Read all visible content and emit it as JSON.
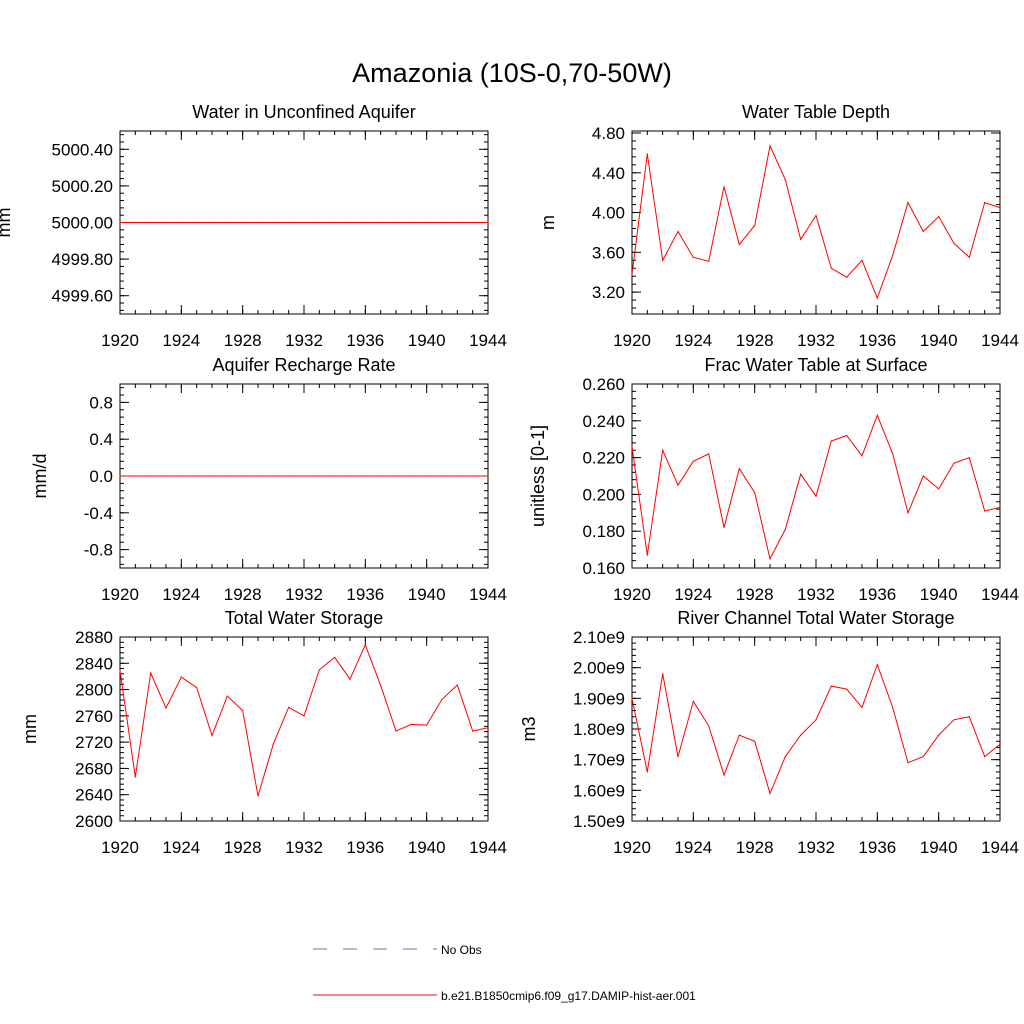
{
  "title": "Amazonia (10S-0,70-50W)",
  "chart_data": [
    {
      "type": "line",
      "title": "Water in Unconfined Aquifer",
      "ylabel": "mm",
      "xlim": [
        1920,
        1944
      ],
      "ylim": [
        4999.5,
        5000.5
      ],
      "xticks": [
        1920,
        1924,
        1928,
        1932,
        1936,
        1940,
        1944
      ],
      "xtick_labels": [
        "1920",
        "1924",
        "1928",
        "1932",
        "1936",
        "1940",
        "1944"
      ],
      "yticks": [
        4999.6,
        4999.8,
        5000.0,
        5000.2,
        5000.4
      ],
      "ytick_labels": [
        "4999.60",
        "4999.80",
        "5000.00",
        "5000.20",
        "5000.40"
      ],
      "series": [
        {
          "name": "b.e21.B1850cmip6.f09_g17.DAMIP-hist-aer.001",
          "color": "#ff0000",
          "x": [
            1920,
            1921,
            1922,
            1923,
            1924,
            1925,
            1926,
            1927,
            1928,
            1929,
            1930,
            1931,
            1932,
            1933,
            1934,
            1935,
            1936,
            1937,
            1938,
            1939,
            1940,
            1941,
            1942,
            1943,
            1944
          ],
          "y": [
            5000,
            5000,
            5000,
            5000,
            5000,
            5000,
            5000,
            5000,
            5000,
            5000,
            5000,
            5000,
            5000,
            5000,
            5000,
            5000,
            5000,
            5000,
            5000,
            5000,
            5000,
            5000,
            5000,
            5000,
            5000
          ]
        }
      ]
    },
    {
      "type": "line",
      "title": "Water Table Depth",
      "ylabel": "m",
      "xlim": [
        1920,
        1944
      ],
      "ylim": [
        2.98,
        4.82
      ],
      "xticks": [
        1920,
        1924,
        1928,
        1932,
        1936,
        1940,
        1944
      ],
      "xtick_labels": [
        "1920",
        "1924",
        "1928",
        "1932",
        "1936",
        "1940",
        "1944"
      ],
      "yticks": [
        3.2,
        3.6,
        4.0,
        4.4,
        4.8
      ],
      "ytick_labels": [
        "3.20",
        "3.60",
        "4.00",
        "4.40",
        "4.80"
      ],
      "series": [
        {
          "name": "b.e21.B1850cmip6.f09_g17.DAMIP-hist-aer.001",
          "color": "#ff0000",
          "x": [
            1920,
            1921,
            1922,
            1923,
            1924,
            1925,
            1926,
            1927,
            1928,
            1929,
            1930,
            1931,
            1932,
            1933,
            1934,
            1935,
            1936,
            1937,
            1938,
            1939,
            1940,
            1941,
            1942,
            1943,
            1944
          ],
          "y": [
            3.38,
            4.59,
            3.52,
            3.81,
            3.55,
            3.51,
            4.26,
            3.68,
            3.87,
            4.67,
            4.33,
            3.73,
            3.97,
            3.44,
            3.35,
            3.52,
            3.14,
            3.57,
            4.1,
            3.81,
            3.96,
            3.69,
            3.55,
            4.1,
            4.05
          ]
        }
      ]
    },
    {
      "type": "line",
      "title": "Aquifer Recharge Rate",
      "ylabel": "mm/d",
      "xlim": [
        1920,
        1944
      ],
      "ylim": [
        -1.0,
        1.0
      ],
      "xticks": [
        1920,
        1924,
        1928,
        1932,
        1936,
        1940,
        1944
      ],
      "xtick_labels": [
        "1920",
        "1924",
        "1928",
        "1932",
        "1936",
        "1940",
        "1944"
      ],
      "yticks": [
        -0.8,
        -0.4,
        0.0,
        0.4,
        0.8
      ],
      "ytick_labels": [
        "-0.8",
        "-0.4",
        "0.0",
        "0.4",
        "0.8"
      ],
      "series": [
        {
          "name": "b.e21.B1850cmip6.f09_g17.DAMIP-hist-aer.001",
          "color": "#ff0000",
          "x": [
            1920,
            1921,
            1922,
            1923,
            1924,
            1925,
            1926,
            1927,
            1928,
            1929,
            1930,
            1931,
            1932,
            1933,
            1934,
            1935,
            1936,
            1937,
            1938,
            1939,
            1940,
            1941,
            1942,
            1943,
            1944
          ],
          "y": [
            0,
            0,
            0,
            0,
            0,
            0,
            0,
            0,
            0,
            0,
            0,
            0,
            0,
            0,
            0,
            0,
            0,
            0,
            0,
            0,
            0,
            0,
            0,
            0,
            0
          ]
        }
      ]
    },
    {
      "type": "line",
      "title": "Frac Water Table at Surface",
      "ylabel": "unitless [0-1]",
      "xlim": [
        1920,
        1944
      ],
      "ylim": [
        0.16,
        0.26
      ],
      "xticks": [
        1920,
        1924,
        1928,
        1932,
        1936,
        1940,
        1944
      ],
      "xtick_labels": [
        "1920",
        "1924",
        "1928",
        "1932",
        "1936",
        "1940",
        "1944"
      ],
      "yticks": [
        0.16,
        0.18,
        0.2,
        0.22,
        0.24,
        0.26
      ],
      "ytick_labels": [
        "0.160",
        "0.180",
        "0.200",
        "0.220",
        "0.240",
        "0.260"
      ],
      "series": [
        {
          "name": "b.e21.B1850cmip6.f09_g17.DAMIP-hist-aer.001",
          "color": "#ff0000",
          "x": [
            1920,
            1921,
            1922,
            1923,
            1924,
            1925,
            1926,
            1927,
            1928,
            1929,
            1930,
            1931,
            1932,
            1933,
            1934,
            1935,
            1936,
            1937,
            1938,
            1939,
            1940,
            1941,
            1942,
            1943,
            1944
          ],
          "y": [
            0.226,
            0.167,
            0.224,
            0.205,
            0.218,
            0.222,
            0.182,
            0.214,
            0.201,
            0.165,
            0.181,
            0.211,
            0.199,
            0.229,
            0.232,
            0.221,
            0.243,
            0.222,
            0.19,
            0.21,
            0.203,
            0.217,
            0.22,
            0.191,
            0.193
          ]
        }
      ]
    },
    {
      "type": "line",
      "title": "Total Water Storage",
      "ylabel": "mm",
      "xlim": [
        1920,
        1944
      ],
      "ylim": [
        2600,
        2880
      ],
      "xticks": [
        1920,
        1924,
        1928,
        1932,
        1936,
        1940,
        1944
      ],
      "xtick_labels": [
        "1920",
        "1924",
        "1928",
        "1932",
        "1936",
        "1940",
        "1944"
      ],
      "yticks": [
        2600,
        2640,
        2680,
        2720,
        2760,
        2800,
        2840,
        2880
      ],
      "ytick_labels": [
        "2600",
        "2640",
        "2680",
        "2720",
        "2760",
        "2800",
        "2840",
        "2880"
      ],
      "series": [
        {
          "name": "b.e21.B1850cmip6.f09_g17.DAMIP-hist-aer.001",
          "color": "#ff0000",
          "x": [
            1920,
            1921,
            1922,
            1923,
            1924,
            1925,
            1926,
            1927,
            1928,
            1929,
            1930,
            1931,
            1932,
            1933,
            1934,
            1935,
            1936,
            1937,
            1938,
            1939,
            1940,
            1941,
            1942,
            1943,
            1944
          ],
          "y": [
            2829,
            2667,
            2825,
            2772,
            2819,
            2803,
            2730,
            2790,
            2768,
            2638,
            2717,
            2773,
            2760,
            2830,
            2849,
            2816,
            2868,
            2806,
            2737,
            2747,
            2746,
            2785,
            2807,
            2737,
            2742
          ]
        }
      ]
    },
    {
      "type": "line",
      "title": "River Channel Total Water Storage",
      "ylabel": "m3",
      "xlim": [
        1920,
        1944
      ],
      "ylim": [
        1500000000.0,
        2100000000.0
      ],
      "xticks": [
        1920,
        1924,
        1928,
        1932,
        1936,
        1940,
        1944
      ],
      "xtick_labels": [
        "1920",
        "1924",
        "1928",
        "1932",
        "1936",
        "1940",
        "1944"
      ],
      "yticks": [
        1500000000.0,
        1600000000.0,
        1700000000.0,
        1800000000.0,
        1900000000.0,
        2000000000.0,
        2100000000.0
      ],
      "ytick_labels": [
        "1.50e9",
        "1.60e9",
        "1.70e9",
        "1.80e9",
        "1.90e9",
        "2.00e9",
        "2.10e9"
      ],
      "series": [
        {
          "name": "b.e21.B1850cmip6.f09_g17.DAMIP-hist-aer.001",
          "color": "#ff0000",
          "x": [
            1920,
            1921,
            1922,
            1923,
            1924,
            1925,
            1926,
            1927,
            1928,
            1929,
            1930,
            1931,
            1932,
            1933,
            1934,
            1935,
            1936,
            1937,
            1938,
            1939,
            1940,
            1941,
            1942,
            1943,
            1944
          ],
          "y": [
            1900000000.0,
            1660000000.0,
            1980000000.0,
            1710000000.0,
            1890000000.0,
            1810000000.0,
            1650000000.0,
            1780000000.0,
            1760000000.0,
            1590000000.0,
            1710000000.0,
            1780000000.0,
            1830000000.0,
            1940000000.0,
            1930000000.0,
            1870000000.0,
            2010000000.0,
            1870000000.0,
            1690000000.0,
            1710000000.0,
            1780000000.0,
            1830000000.0,
            1840000000.0,
            1710000000.0,
            1750000000.0
          ]
        }
      ]
    }
  ],
  "legend": {
    "placement": "bottom-center",
    "items": [
      {
        "label": "No Obs",
        "color": "#6f6fb8",
        "style": "dashed"
      },
      {
        "label": "b.e21.B1850cmip6.f09_g17.DAMIP-hist-aer.001",
        "color": "#ff0000",
        "style": "solid"
      }
    ]
  }
}
